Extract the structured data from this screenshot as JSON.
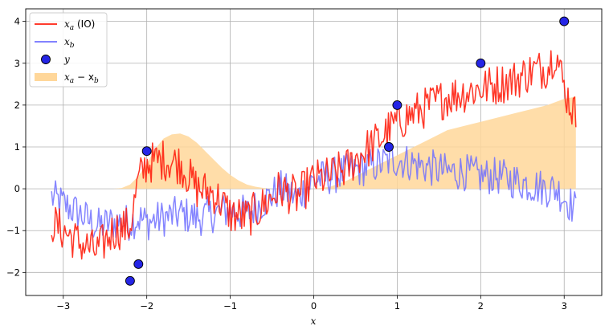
{
  "chart_data": {
    "type": "line",
    "title": "",
    "xlabel": "x",
    "ylabel": "",
    "xlim": [
      -3.45,
      3.45
    ],
    "ylim": [
      -2.55,
      4.3
    ],
    "xticks": [
      -3,
      -2,
      -1,
      0,
      1,
      2,
      3
    ],
    "xtick_labels": [
      "−3",
      "−2",
      "−1",
      "0",
      "1",
      "2",
      "3"
    ],
    "yticks": [
      -2,
      -1,
      0,
      1,
      2,
      3,
      4
    ],
    "ytick_labels": [
      "−2",
      "−1",
      "0",
      "1",
      "2",
      "3",
      "4"
    ],
    "grid": true,
    "legend_position": "top-left",
    "legend": [
      {
        "key": "xa",
        "label_main": "x",
        "label_sub": "a",
        "label_suffix": " (IO)",
        "kind": "line",
        "color": "#ff2010"
      },
      {
        "key": "xb",
        "label_main": "x",
        "label_sub": "b",
        "label_suffix": "",
        "kind": "line",
        "color": "#7070ff"
      },
      {
        "key": "y",
        "label_main": "y",
        "label_sub": "",
        "label_suffix": "",
        "kind": "marker",
        "color": "#2525e6"
      },
      {
        "key": "diff",
        "label_main": "x",
        "label_sub": "a",
        "label_suffix": " − x",
        "label_sub2": "b",
        "kind": "area",
        "color": "#ffd79a"
      }
    ],
    "series": [
      {
        "name": "x_a (IO)",
        "color": "#ff2010",
        "x": [
          -3.14,
          -2.8,
          -2.6,
          -2.4,
          -2.2,
          -2.1,
          -2.0,
          -1.8,
          -1.6,
          -1.4,
          -1.2,
          -1.0,
          -0.8,
          -0.6,
          -0.4,
          -0.2,
          0.0,
          0.2,
          0.4,
          0.6,
          0.8,
          1.0,
          1.2,
          1.4,
          1.6,
          1.8,
          2.0,
          2.2,
          2.4,
          2.6,
          2.8,
          2.9,
          3.0,
          3.14
        ],
        "y": [
          -0.8,
          -1.3,
          -1.5,
          -1.0,
          -0.9,
          0.2,
          0.6,
          0.7,
          0.6,
          0.0,
          -0.1,
          -0.6,
          -0.7,
          -0.4,
          0.0,
          -0.2,
          0.2,
          0.3,
          0.5,
          0.9,
          1.2,
          1.6,
          1.8,
          2.0,
          2.2,
          2.3,
          2.4,
          2.5,
          2.6,
          2.8,
          2.9,
          3.3,
          2.4,
          1.7
        ],
        "noise": 0.5
      },
      {
        "name": "x_b",
        "color": "#7070ff",
        "x": [
          -3.14,
          -2.8,
          -2.6,
          -2.4,
          -2.2,
          -2.1,
          -2.0,
          -1.8,
          -1.6,
          -1.4,
          -1.2,
          -1.0,
          -0.8,
          -0.6,
          -0.4,
          -0.2,
          0.0,
          0.2,
          0.4,
          0.6,
          0.8,
          1.0,
          1.2,
          1.4,
          1.6,
          1.8,
          2.0,
          2.2,
          2.4,
          2.6,
          2.8,
          2.9,
          3.0,
          3.14
        ],
        "y": [
          -0.2,
          -0.6,
          -0.9,
          -0.8,
          -0.8,
          -0.7,
          -0.8,
          -0.7,
          -0.6,
          -0.7,
          -0.6,
          -0.5,
          -0.6,
          -0.3,
          0.0,
          -0.2,
          0.2,
          0.3,
          0.4,
          0.5,
          0.6,
          0.7,
          0.6,
          0.5,
          0.4,
          0.4,
          0.3,
          0.3,
          0.2,
          0.1,
          0.0,
          0.0,
          -0.2,
          -0.5
        ],
        "noise": 0.45
      }
    ],
    "fill_between": {
      "name": "x_a − x_b",
      "color": "#ffd79a",
      "x": [
        -3.14,
        -2.8,
        -2.6,
        -2.4,
        -2.3,
        -2.2,
        -2.1,
        -2.0,
        -1.9,
        -1.8,
        -1.7,
        -1.6,
        -1.5,
        -1.4,
        -1.3,
        -1.2,
        -1.1,
        -1.0,
        -0.9,
        -0.8,
        -0.7,
        -0.6,
        -0.5,
        -0.4,
        -0.2,
        0.0,
        0.2,
        0.4,
        0.6,
        0.8,
        1.0,
        1.2,
        1.4,
        1.6,
        1.8,
        2.0,
        2.2,
        2.4,
        2.6,
        2.8,
        3.0,
        3.14
      ],
      "y": [
        0.0,
        0.0,
        0.0,
        0.0,
        0.02,
        0.1,
        0.3,
        0.6,
        0.95,
        1.2,
        1.3,
        1.32,
        1.25,
        1.1,
        0.9,
        0.7,
        0.5,
        0.33,
        0.2,
        0.1,
        0.05,
        0.02,
        0.0,
        0.0,
        0.0,
        0.0,
        0.05,
        0.2,
        0.4,
        0.6,
        0.8,
        1.0,
        1.2,
        1.4,
        1.5,
        1.6,
        1.7,
        1.8,
        1.9,
        2.0,
        2.15,
        2.2
      ]
    },
    "scatter": {
      "name": "y",
      "color": "#2525e6",
      "x": [
        -2.2,
        -2.1,
        -2.0,
        0.9,
        1.0,
        2.0,
        3.0
      ],
      "y": [
        -2.2,
        -1.8,
        0.9,
        1.0,
        2.0,
        3.0,
        4.0
      ]
    }
  }
}
